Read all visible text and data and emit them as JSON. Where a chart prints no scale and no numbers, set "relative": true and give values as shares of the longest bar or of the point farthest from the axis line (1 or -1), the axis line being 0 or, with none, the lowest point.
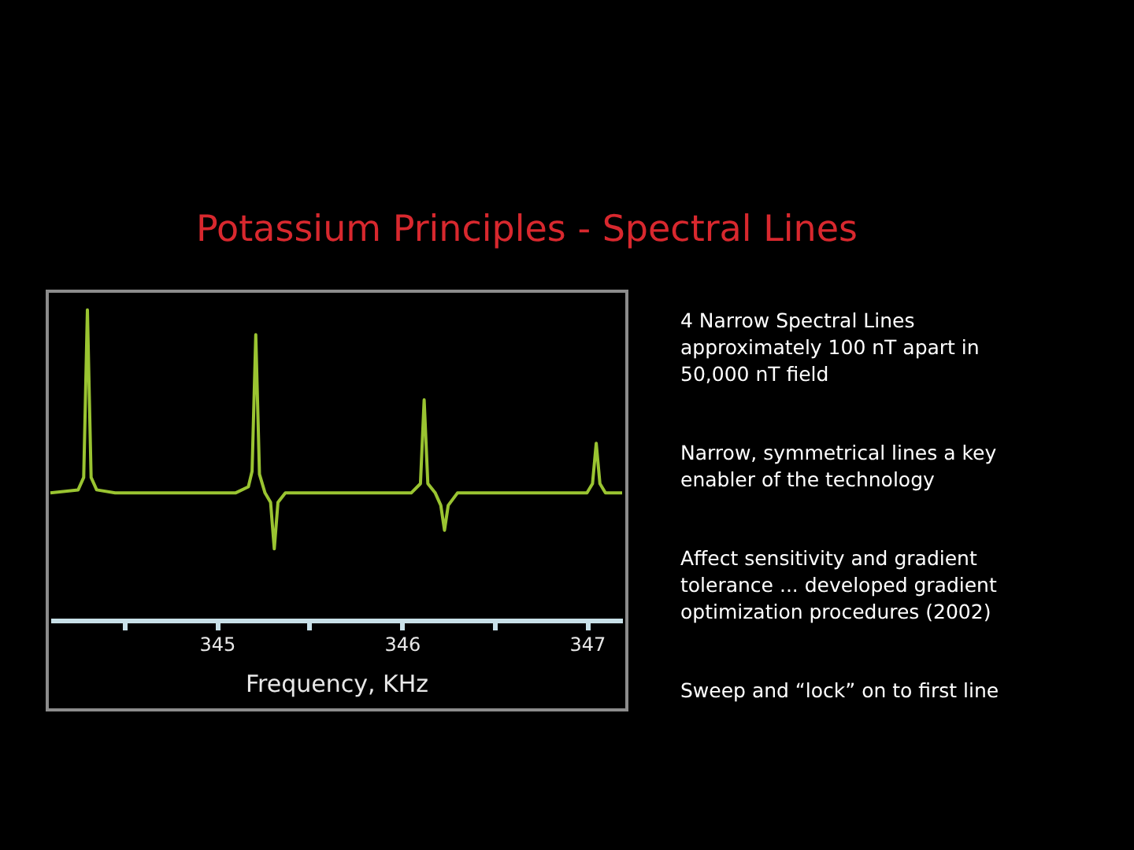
{
  "chart_data": {
    "type": "line",
    "title": "Potassium Principles - Spectral Lines",
    "xlabel": "Frequency, KHz",
    "relative": true,
    "x": [
      344.1,
      344.25,
      344.28,
      344.3,
      344.32,
      344.35,
      344.45,
      345.1,
      345.17,
      345.19,
      345.21,
      345.23,
      345.26,
      345.29,
      345.31,
      345.33,
      345.37,
      346.05,
      346.1,
      346.12,
      346.14,
      346.18,
      346.21,
      346.23,
      346.25,
      346.3,
      347.0,
      347.03,
      347.05,
      347.07,
      347.1,
      347.19
    ],
    "series": [
      {
        "color": "#9ac431",
        "values": [
          0.41,
          0.42,
          0.46,
          1.0,
          0.46,
          0.42,
          0.41,
          0.41,
          0.43,
          0.48,
          0.92,
          0.47,
          0.41,
          0.38,
          0.23,
          0.38,
          0.41,
          0.41,
          0.44,
          0.71,
          0.44,
          0.41,
          0.37,
          0.29,
          0.37,
          0.41,
          0.41,
          0.44,
          0.57,
          0.44,
          0.41,
          0.41
        ]
      }
    ],
    "xlim": [
      344.1,
      347.19
    ],
    "xticks": [
      {
        "value": 344.5,
        "label": null
      },
      345,
      {
        "value": 345.5,
        "label": null
      },
      346,
      {
        "value": 346.5,
        "label": null
      },
      347
    ],
    "grid": false,
    "legend": false,
    "marker": "none",
    "line_style": "solid",
    "annotations": [
      "4 Narrow Spectral Lines approximately 100 nT apart in 50,000 nT field",
      "Narrow, symmetrical lines a key enabler of the technology",
      "Affect sensitivity and gradient tolerance ... developed gradient optimization procedures (2002)",
      "Sweep and “lock” on to first line"
    ]
  }
}
